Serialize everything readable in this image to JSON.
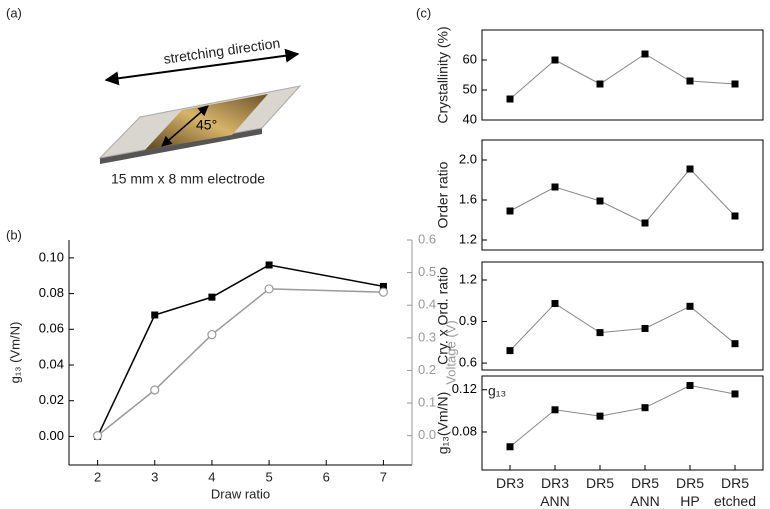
{
  "panels": {
    "a": "(a)",
    "b": "(b)",
    "c": "(c)"
  },
  "photo": {
    "direction_label": "stretching direction",
    "angle_label": "45°",
    "caption": "15 mm x 8 mm electrode"
  },
  "chart_data": [
    {
      "type": "line",
      "xlabel": "Draw ratio",
      "ylabel": "g₁₃ (Vm/N)",
      "y2label": "Voltage (V)",
      "x": [
        2,
        3,
        4,
        5,
        7
      ],
      "xlim": [
        1.5,
        7.5
      ],
      "xticks": [
        2,
        3,
        4,
        5,
        6,
        7
      ],
      "ylim": [
        -0.016,
        0.11
      ],
      "yticks": [
        {
          "value": 0,
          "label": "0.00"
        },
        0.02,
        0.04,
        0.06,
        0.08,
        {
          "value": 0.1,
          "label": "0.10"
        }
      ],
      "y2lim": [
        -0.09,
        0.6
      ],
      "y2ticks": [
        {
          "value": 0,
          "label": "0.0"
        },
        0.1,
        0.2,
        0.3,
        0.4,
        0.5,
        0.6
      ],
      "y2color": "#999999",
      "series": [
        {
          "color": "#000000",
          "marker": "square",
          "values": [
            0,
            0.068,
            0.078,
            0.096,
            0.084
          ]
        },
        {
          "color": "#999999",
          "marker": "circle-open",
          "axis": "y2",
          "values": [
            0,
            0.14,
            0.31,
            0.45,
            0.44
          ]
        }
      ]
    },
    {
      "type": "line",
      "ylabel": "Crystallinity (%)",
      "ylim": [
        40,
        70
      ],
      "yticks": [
        40,
        50,
        60
      ],
      "color": "#000000",
      "values": [
        47,
        60,
        52,
        62,
        53,
        52
      ]
    },
    {
      "type": "line",
      "ylabel": "Order ratio",
      "ylim": [
        1.1,
        2.2
      ],
      "yticks": [
        1.2,
        1.6,
        {
          "value": 2,
          "label": "2.0"
        }
      ],
      "color": "#000000",
      "values": [
        1.49,
        1.73,
        1.59,
        1.37,
        1.91,
        1.44
      ]
    },
    {
      "type": "line",
      "ylabel": "Cry. x Ord. ratio",
      "ylim": [
        0.55,
        1.33
      ],
      "yticks": [
        0.6,
        0.9,
        1.2
      ],
      "color": "#000000",
      "values": [
        0.69,
        1.03,
        0.82,
        0.85,
        1.01,
        0.74
      ]
    },
    {
      "type": "line",
      "ylabel": "g₁₃(Vm/N)",
      "annotation": "g₁₃",
      "ylim": [
        0.044,
        0.133
      ],
      "yticks": [
        0.08,
        0.12
      ],
      "categories": [
        "DR3",
        "DR3 ANN",
        "DR5",
        "DR5 ANN",
        "DR5 HP",
        "DR5 etched"
      ],
      "color": "#000000",
      "values": [
        0.066,
        0.101,
        0.095,
        0.103,
        0.124,
        0.116
      ]
    }
  ]
}
